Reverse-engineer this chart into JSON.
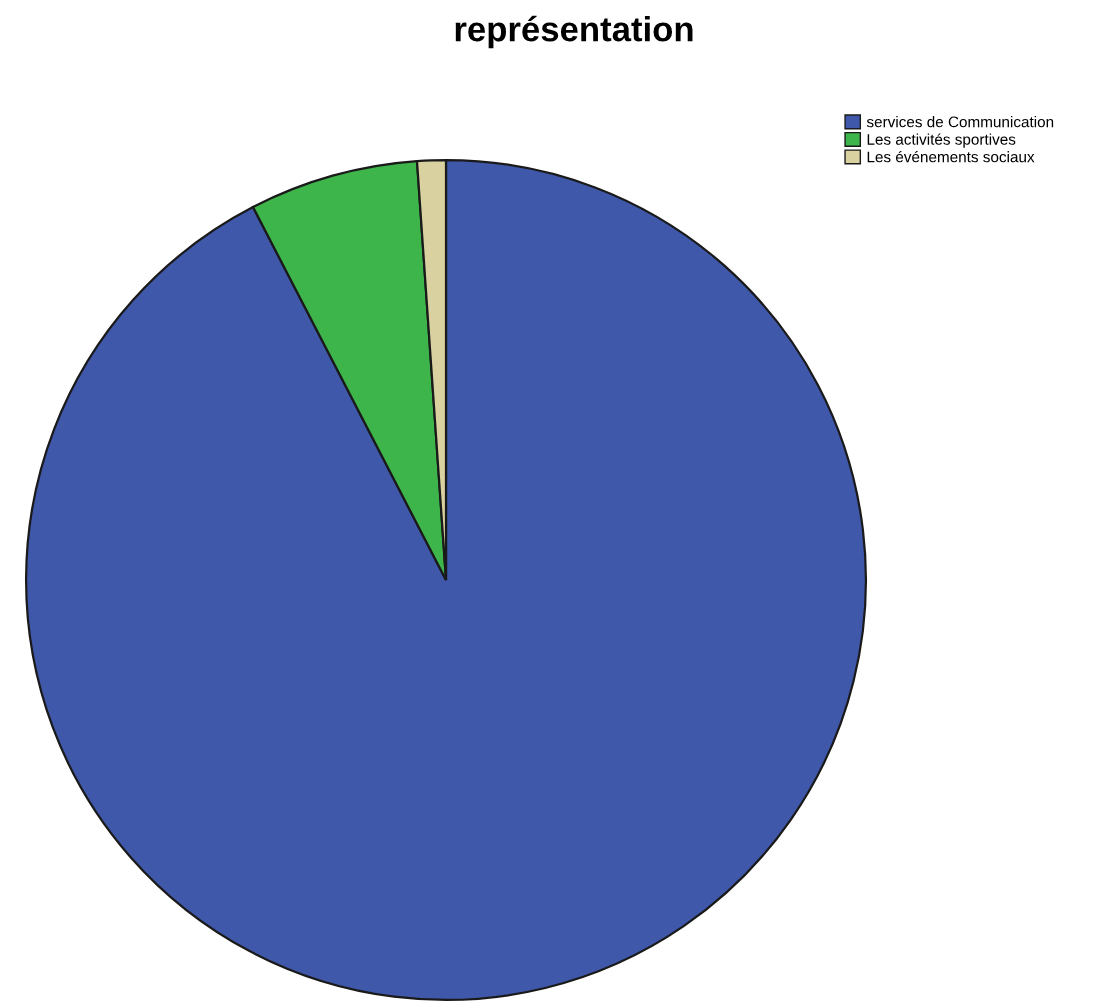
{
  "chart_data": {
    "type": "pie",
    "title": "représentation",
    "categories": [
      "services de Communication",
      "Les activités sportives",
      "Les événements sociaux"
    ],
    "values": [
      92.4,
      6.5,
      1.1
    ],
    "colors": [
      "#3f58aa",
      "#3db54a",
      "#d9d2a0"
    ],
    "legend": "top right"
  }
}
